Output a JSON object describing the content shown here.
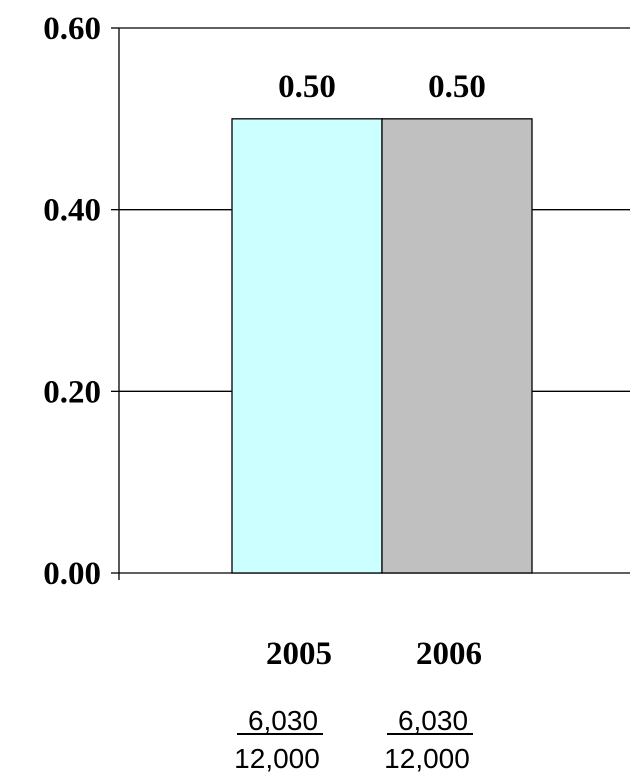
{
  "chart_data": {
    "type": "bar",
    "categories": [
      "2005",
      "2006"
    ],
    "values": [
      0.5,
      0.5
    ],
    "data_labels": [
      "0.50",
      "0.50"
    ],
    "bar_colors": [
      "#ccffff",
      "#c0c0c0"
    ],
    "title": "",
    "xlabel": "",
    "ylabel": "",
    "ylim": [
      0,
      0.6
    ],
    "y_ticks": [
      {
        "value": 0.0,
        "label": "0.00"
      },
      {
        "value": 0.2,
        "label": "0.20"
      },
      {
        "value": 0.4,
        "label": "0.40"
      },
      {
        "value": 0.6,
        "label": "0.60"
      }
    ],
    "grid": true,
    "legend": "none",
    "fractions": [
      {
        "numerator": "6,030",
        "denominator": "12,000"
      },
      {
        "numerator": "6,030",
        "denominator": "12,000"
      }
    ]
  }
}
